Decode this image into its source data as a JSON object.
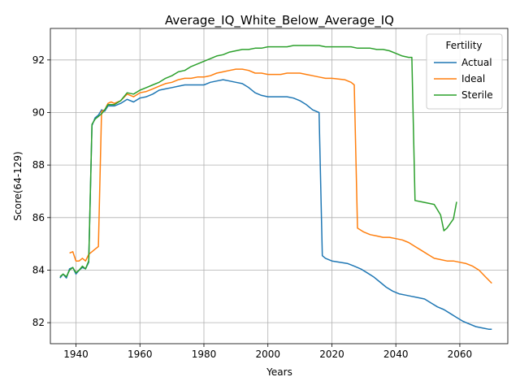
{
  "chart_data": {
    "type": "line",
    "title": "Average_IQ_White_Below_Average_IQ",
    "xlabel": "Years",
    "ylabel": "Score(64-129)",
    "xlim": [
      1932,
      2075
    ],
    "ylim": [
      81.2,
      93.2
    ],
    "xticks": [
      1940,
      1960,
      1980,
      2000,
      2020,
      2040,
      2060
    ],
    "yticks": [
      82,
      84,
      86,
      88,
      90,
      92
    ],
    "grid": true,
    "legend": {
      "title": "Fertility",
      "placement": "top-right"
    },
    "series": [
      {
        "name": "Actual",
        "color": "#1f77b4",
        "x": [
          1935,
          1936,
          1937,
          1938,
          1939,
          1940,
          1941,
          1942,
          1943,
          1944,
          1945,
          1946,
          1947,
          1948,
          1949,
          1950,
          1952,
          1954,
          1956,
          1958,
          1960,
          1962,
          1964,
          1966,
          1968,
          1970,
          1972,
          1974,
          1976,
          1978,
          1980,
          1982,
          1984,
          1986,
          1988,
          1990,
          1992,
          1994,
          1996,
          1998,
          2000,
          2002,
          2004,
          2006,
          2008,
          2010,
          2012,
          2014,
          2016,
          2017,
          2018,
          2020,
          2025,
          2027,
          2029,
          2031,
          2033,
          2035,
          2037,
          2039,
          2041,
          2043,
          2045,
          2047,
          2049,
          2051,
          2053,
          2055,
          2057,
          2059,
          2061,
          2063,
          2065,
          2067,
          2069,
          2070
        ],
        "values": [
          83.7,
          83.85,
          83.7,
          84.05,
          84.1,
          83.85,
          84.0,
          84.1,
          84.05,
          84.3,
          89.5,
          89.8,
          89.9,
          90.1,
          90.05,
          90.25,
          90.25,
          90.35,
          90.5,
          90.4,
          90.55,
          90.6,
          90.7,
          90.85,
          90.9,
          90.95,
          91.0,
          91.05,
          91.05,
          91.05,
          91.05,
          91.15,
          91.2,
          91.25,
          91.2,
          91.15,
          91.1,
          90.95,
          90.75,
          90.65,
          90.6,
          90.6,
          90.6,
          90.6,
          90.55,
          90.45,
          90.3,
          90.1,
          90.0,
          84.55,
          84.45,
          84.35,
          84.25,
          84.15,
          84.05,
          83.9,
          83.75,
          83.55,
          83.35,
          83.2,
          83.1,
          83.05,
          83.0,
          82.95,
          82.9,
          82.75,
          82.6,
          82.5,
          82.35,
          82.2,
          82.05,
          81.95,
          81.85,
          81.8,
          81.75,
          81.75
        ]
      },
      {
        "name": "Ideal",
        "color": "#ff7f0e",
        "x": [
          1938,
          1939,
          1940,
          1941,
          1942,
          1943,
          1944,
          1945,
          1946,
          1947,
          1948,
          1949,
          1950,
          1951,
          1952,
          1954,
          1956,
          1958,
          1960,
          1962,
          1964,
          1966,
          1968,
          1970,
          1972,
          1974,
          1976,
          1978,
          1980,
          1982,
          1984,
          1986,
          1988,
          1990,
          1992,
          1994,
          1996,
          1998,
          2000,
          2002,
          2004,
          2006,
          2008,
          2010,
          2012,
          2014,
          2016,
          2018,
          2020,
          2024,
          2026,
          2027,
          2028,
          2030,
          2032,
          2034,
          2036,
          2038,
          2040,
          2042,
          2044,
          2046,
          2048,
          2050,
          2052,
          2054,
          2056,
          2058,
          2060,
          2062,
          2064,
          2066,
          2068,
          2070
        ],
        "values": [
          84.65,
          84.7,
          84.35,
          84.35,
          84.45,
          84.35,
          84.6,
          84.7,
          84.8,
          84.9,
          90.05,
          90.1,
          90.35,
          90.4,
          90.35,
          90.45,
          90.7,
          90.6,
          90.75,
          90.8,
          90.9,
          91.0,
          91.1,
          91.15,
          91.25,
          91.3,
          91.3,
          91.35,
          91.35,
          91.4,
          91.5,
          91.55,
          91.6,
          91.65,
          91.65,
          91.6,
          91.5,
          91.5,
          91.45,
          91.45,
          91.45,
          91.5,
          91.5,
          91.5,
          91.45,
          91.4,
          91.35,
          91.3,
          91.3,
          91.25,
          91.15,
          91.05,
          85.6,
          85.45,
          85.35,
          85.3,
          85.25,
          85.25,
          85.2,
          85.15,
          85.05,
          84.9,
          84.75,
          84.6,
          84.45,
          84.4,
          84.35,
          84.35,
          84.3,
          84.25,
          84.15,
          84.0,
          83.75,
          83.5
        ]
      },
      {
        "name": "Sterile",
        "color": "#2ca02c",
        "x": [
          1935,
          1936,
          1937,
          1938,
          1939,
          1940,
          1941,
          1942,
          1943,
          1944,
          1945,
          1946,
          1947,
          1948,
          1949,
          1950,
          1952,
          1954,
          1956,
          1958,
          1960,
          1962,
          1964,
          1966,
          1968,
          1970,
          1972,
          1974,
          1976,
          1978,
          1980,
          1982,
          1984,
          1986,
          1988,
          1990,
          1992,
          1994,
          1996,
          1998,
          2000,
          2002,
          2004,
          2006,
          2008,
          2010,
          2012,
          2014,
          2016,
          2018,
          2020,
          2022,
          2024,
          2026,
          2028,
          2030,
          2032,
          2034,
          2036,
          2038,
          2040,
          2042,
          2044,
          2045,
          2046,
          2048,
          2050,
          2052,
          2054,
          2055,
          2056,
          2058,
          2059
        ],
        "values": [
          83.75,
          83.85,
          83.75,
          84.0,
          84.1,
          83.9,
          84.0,
          84.15,
          84.05,
          84.35,
          89.55,
          89.75,
          89.85,
          89.95,
          90.1,
          90.3,
          90.3,
          90.45,
          90.75,
          90.7,
          90.85,
          90.95,
          91.05,
          91.15,
          91.3,
          91.4,
          91.55,
          91.6,
          91.75,
          91.85,
          91.95,
          92.05,
          92.15,
          92.2,
          92.3,
          92.35,
          92.4,
          92.4,
          92.45,
          92.45,
          92.5,
          92.5,
          92.5,
          92.5,
          92.55,
          92.55,
          92.55,
          92.55,
          92.55,
          92.5,
          92.5,
          92.5,
          92.5,
          92.5,
          92.45,
          92.45,
          92.45,
          92.4,
          92.4,
          92.35,
          92.25,
          92.15,
          92.1,
          92.1,
          86.65,
          86.6,
          86.55,
          86.5,
          86.1,
          85.5,
          85.6,
          85.95,
          86.6
        ]
      }
    ]
  }
}
